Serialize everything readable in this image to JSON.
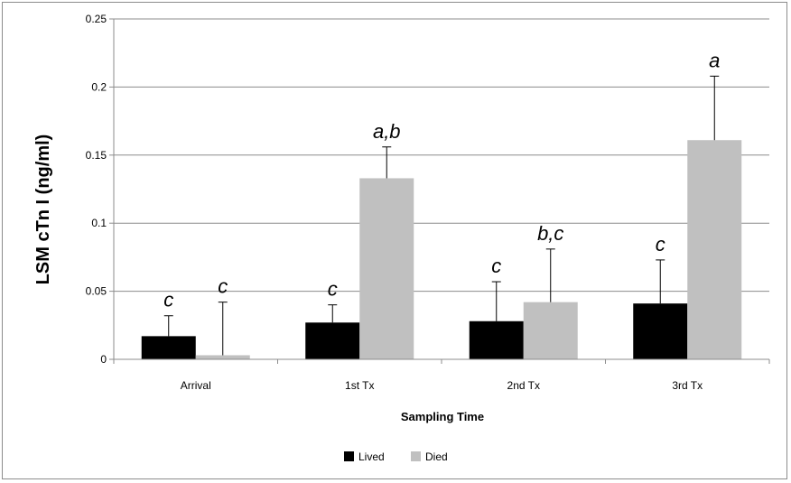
{
  "chart_data": {
    "type": "bar",
    "title": "",
    "xlabel": "Sampling Time",
    "ylabel": "LSM cTn I  (ng/ml)",
    "categories": [
      "Arrival",
      "1st Tx",
      "2nd Tx",
      "3rd Tx"
    ],
    "ylim": [
      0,
      0.25
    ],
    "yticks": [
      0,
      0.05,
      0.1,
      0.15,
      0.2,
      0.25
    ],
    "ytick_labels": [
      "0",
      "0.05",
      "0.1",
      "0.15",
      "0.2",
      "0.25"
    ],
    "grid": true,
    "legend_position": "bottom",
    "series": [
      {
        "name": "Lived",
        "color": "#000000",
        "values": [
          0.017,
          0.027,
          0.028,
          0.041
        ],
        "error": [
          0.015,
          0.013,
          0.029,
          0.032
        ],
        "annotations": [
          "c",
          "c",
          "c",
          "c"
        ]
      },
      {
        "name": "Died",
        "color": "#c0c0c0",
        "values": [
          0.003,
          0.133,
          0.042,
          0.161
        ],
        "error": [
          0.039,
          0.023,
          0.039,
          0.047
        ],
        "annotations": [
          "c",
          "a,b",
          "b,c",
          "a"
        ]
      }
    ]
  }
}
